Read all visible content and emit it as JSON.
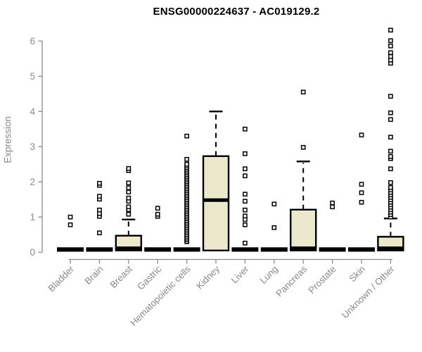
{
  "chart_data": {
    "type": "boxplot",
    "title": "ENSG00000224637 - AC019129.2",
    "ylabel": "Expression",
    "xlabel": "",
    "ylim": [
      0,
      6.35
    ],
    "yticks": [
      0,
      1,
      2,
      3,
      4,
      5,
      6
    ],
    "grid": false,
    "legend": "none",
    "colors": {
      "box_fill": "#ECE8CC",
      "box_stroke": "#000000",
      "axis": "#8A8A8A",
      "title": "#000000",
      "outlier_fill": "#FFFFFF"
    },
    "categories": [
      {
        "label": "Bladder",
        "stats": {
          "lo": 0.05,
          "q1": 0.05,
          "med": 0.05,
          "q3": 0.05,
          "hi": 0.05
        },
        "outliers": [
          0.78,
          1.0
        ]
      },
      {
        "label": "Brain",
        "stats": {
          "lo": 0.05,
          "q1": 0.05,
          "med": 0.05,
          "q3": 0.05,
          "hi": 0.05
        },
        "outliers": [
          0.55,
          1.02,
          1.1,
          1.2,
          1.51,
          1.59,
          1.9,
          1.96
        ]
      },
      {
        "label": "Breast",
        "stats": {
          "lo": 0.05,
          "q1": 0.05,
          "med": 0.05,
          "q3": 0.47,
          "hi": 0.93
        },
        "outliers": [
          1.08,
          1.21,
          1.29,
          1.45,
          1.54,
          1.71,
          1.83,
          1.97,
          2.32,
          2.38
        ]
      },
      {
        "label": "Gastric",
        "stats": {
          "lo": 0.05,
          "q1": 0.05,
          "med": 0.05,
          "q3": 0.05,
          "hi": 0.05
        },
        "outliers": [
          1.02,
          1.08,
          1.25
        ]
      },
      {
        "label": "Hematopoietic cells",
        "stats": {
          "lo": 0.05,
          "q1": 0.05,
          "med": 0.05,
          "q3": 0.05,
          "hi": 0.05
        },
        "outliers": [
          0.3,
          0.35,
          0.4,
          0.45,
          0.5,
          0.55,
          0.6,
          0.65,
          0.7,
          0.75,
          0.8,
          0.85,
          0.9,
          0.95,
          1.0,
          1.05,
          1.1,
          1.15,
          1.2,
          1.25,
          1.3,
          1.35,
          1.4,
          1.45,
          1.5,
          1.55,
          1.6,
          1.65,
          1.7,
          1.75,
          1.8,
          1.85,
          1.9,
          1.95,
          2.0,
          2.05,
          2.1,
          2.15,
          2.2,
          2.25,
          2.3,
          2.35,
          2.4,
          2.45,
          2.5,
          2.64,
          3.3
        ]
      },
      {
        "label": "Kidney",
        "stats": {
          "lo": 0.05,
          "q1": 0.05,
          "med": 1.48,
          "q3": 2.73,
          "hi": 4.0
        },
        "outliers": []
      },
      {
        "label": "Liver",
        "stats": {
          "lo": 0.05,
          "q1": 0.05,
          "med": 0.05,
          "q3": 0.05,
          "hi": 0.05
        },
        "outliers": [
          0.26,
          0.78,
          0.93,
          1.03,
          1.2,
          1.45,
          1.65,
          2.17,
          2.37,
          2.8,
          3.5
        ]
      },
      {
        "label": "Lung",
        "stats": {
          "lo": 0.05,
          "q1": 0.05,
          "med": 0.05,
          "q3": 0.05,
          "hi": 0.05
        },
        "outliers": [
          0.7,
          1.37
        ]
      },
      {
        "label": "Pancreas",
        "stats": {
          "lo": 0.05,
          "q1": 0.05,
          "med": 0.05,
          "q3": 1.21,
          "hi": 2.58
        },
        "outliers": [
          2.98,
          4.55
        ]
      },
      {
        "label": "Prostate",
        "stats": {
          "lo": 0.05,
          "q1": 0.05,
          "med": 0.05,
          "q3": 0.05,
          "hi": 0.05
        },
        "outliers": [
          1.29,
          1.4
        ]
      },
      {
        "label": "Skin",
        "stats": {
          "lo": 0.05,
          "q1": 0.05,
          "med": 0.05,
          "q3": 0.05,
          "hi": 0.05
        },
        "outliers": [
          1.42,
          1.69,
          1.93,
          3.33
        ]
      },
      {
        "label": "Unknown / Other",
        "stats": {
          "lo": 0.05,
          "q1": 0.05,
          "med": 0.05,
          "q3": 0.44,
          "hi": 0.96
        },
        "outliers": [
          1.0,
          1.07,
          1.14,
          1.21,
          1.28,
          1.35,
          1.42,
          1.49,
          1.56,
          1.63,
          1.7,
          1.77,
          1.84,
          1.98,
          2.37,
          2.66,
          2.72,
          2.87,
          3.27,
          3.77,
          3.96,
          4.43,
          5.37,
          5.46,
          5.56,
          5.67,
          5.86,
          6.01,
          6.31
        ]
      }
    ]
  }
}
